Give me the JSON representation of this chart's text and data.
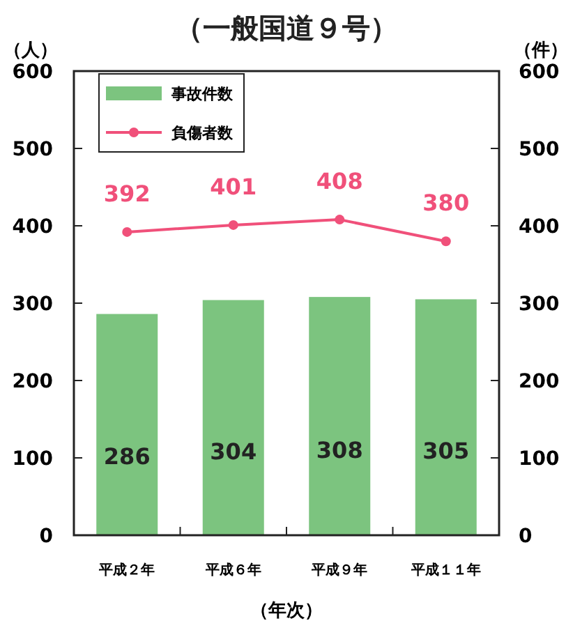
{
  "chart_data": {
    "type": "bar",
    "title": "（一般国道９号）",
    "xlabel": "（年次）",
    "ylabel": "（人）",
    "y2label": "（件）",
    "categories": [
      "平成２年",
      "平成６年",
      "平成９年",
      "平成１１年"
    ],
    "series": [
      {
        "name": "事故件数",
        "axis": "y2",
        "color": "#7cc47f",
        "values": [
          286,
          304,
          308,
          305
        ]
      },
      {
        "name": "負傷者数",
        "type": "line",
        "color": "#f0507a",
        "values": [
          392,
          401,
          408,
          380
        ]
      }
    ],
    "ylim": [
      0,
      600
    ],
    "yticks": [
      0,
      100,
      200,
      300,
      400,
      500,
      600
    ],
    "y2lim": [
      0,
      600
    ],
    "y2ticks": [
      0,
      100,
      200,
      300,
      400,
      500,
      600
    ],
    "marker": "circle",
    "data_labels": true,
    "legend": "top left",
    "grid": false
  }
}
